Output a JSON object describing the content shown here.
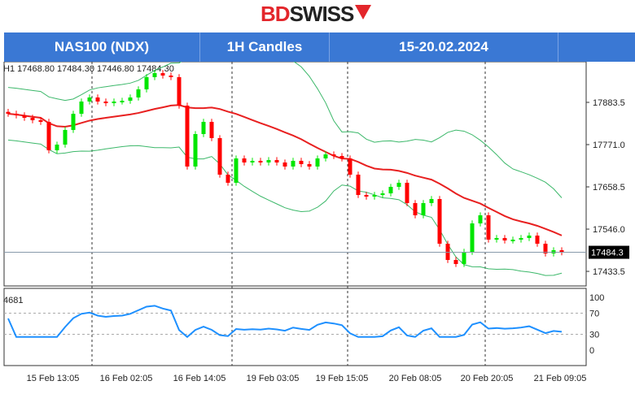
{
  "logo": {
    "text": "BDSWISS"
  },
  "header": {
    "symbol": "NAS100 (NDX)",
    "timeframe": "1H Candles",
    "range": "15-20.02.2024"
  },
  "ohlc_label": "H1  17468.80 17484.30 17446.80 17484.30",
  "indicator_label": "4681",
  "chart_data": {
    "type": "candlestick",
    "price_ticks": [
      17883.5,
      17771.0,
      17658.5,
      17546.0,
      17433.5
    ],
    "current_price": "17484.3",
    "ylim": [
      17420,
      17985
    ],
    "closes": [
      17853.2,
      17848.9,
      17842.4,
      17835.9,
      17831.6,
      17755.9,
      17771.0,
      17810.0,
      17853.0,
      17885.7,
      17896.5,
      17885.7,
      17881.3,
      17885.7,
      17887.8,
      17896.5,
      17918.1,
      17950.6,
      17961.4,
      17954.9,
      17950.6,
      17874.8,
      17712.6,
      17799.1,
      17831.6,
      17788.3,
      17691.0,
      17669.4,
      17734.2,
      17723.4,
      17727.8,
      17723.4,
      17729.9,
      17723.4,
      17712.6,
      17727.8,
      17719.1,
      17712.6,
      17734.2,
      17745.0,
      17740.7,
      17734.2,
      17691.0,
      17636.9,
      17632.6,
      17636.9,
      17641.2,
      17658.5,
      17669.4,
      17615.3,
      17582.8,
      17615.3,
      17626.1,
      17507.1,
      17463.9,
      17453.1,
      17485.5,
      17561.2,
      17582.8,
      17518.0,
      17522.3,
      17515.8,
      17518.0,
      17522.3,
      17528.8,
      17507.1,
      17481.2,
      17489.8,
      17484.3
    ],
    "overlays": [
      "moving-average",
      "bollinger-bands"
    ],
    "colors": {
      "up": "#00e600",
      "down": "#ff0000",
      "ma": "#e82020",
      "bands": "#3cb86a",
      "rsi": "#1e90ff"
    },
    "rsi_ticks": [
      "100",
      "70",
      "30",
      "0"
    ],
    "time_labels": [
      "15 Feb 13:05",
      "16 Feb 02:05",
      "16 Feb 14:05",
      "19 Feb 03:05",
      "19 Feb 15:05",
      "20 Feb 08:05",
      "20 Feb 20:05",
      "21 Feb 09:05"
    ]
  }
}
